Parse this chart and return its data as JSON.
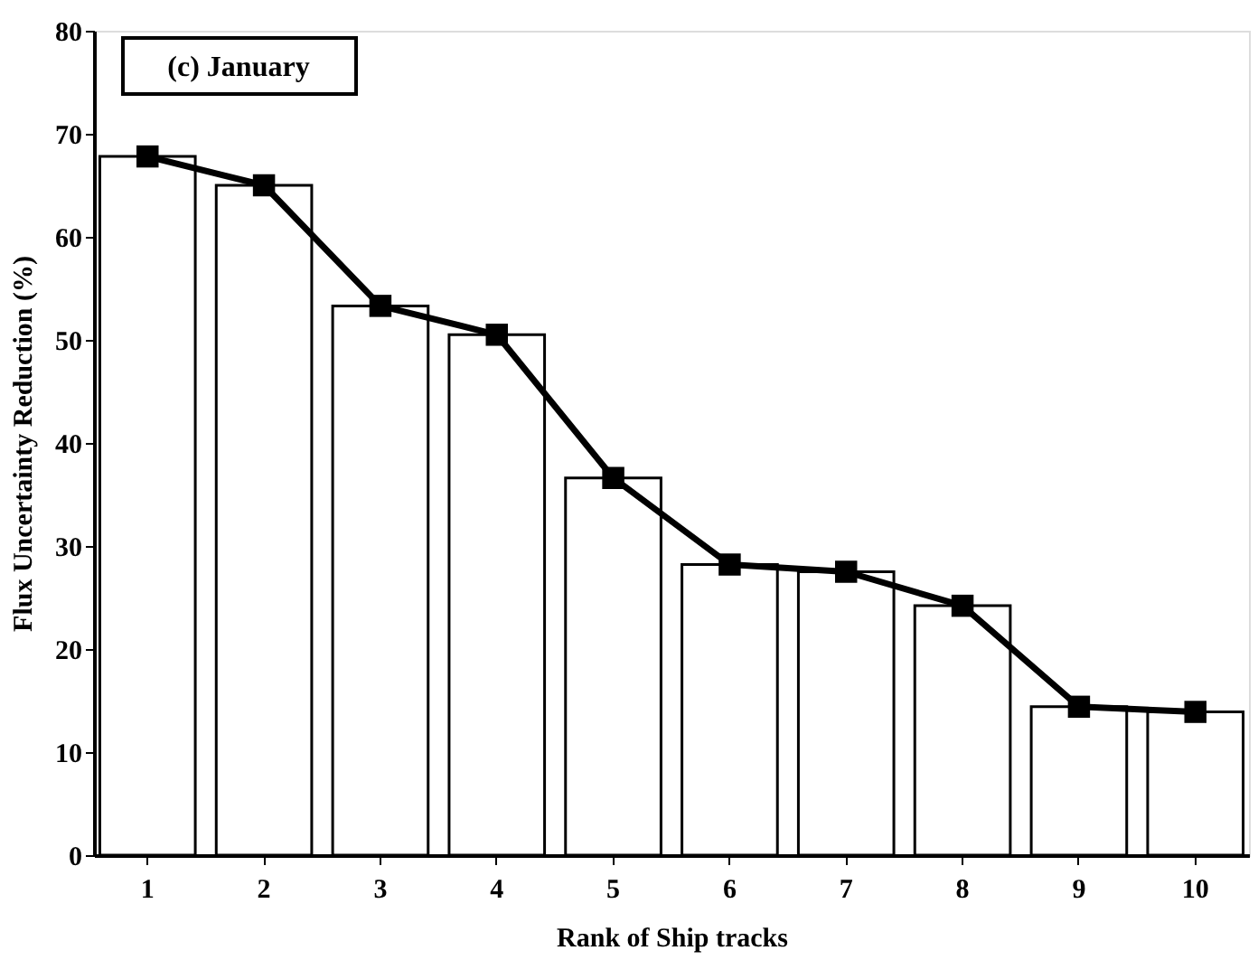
{
  "chart_data": {
    "type": "bar",
    "xlabel": "Rank of Ship tracks",
    "ylabel": "Flux Uncertainty Reduction (%)",
    "annotations": [
      "(c) January"
    ],
    "categories": [
      "1",
      "2",
      "3",
      "4",
      "5",
      "6",
      "7",
      "8",
      "9",
      "10"
    ],
    "series": [
      {
        "color": "#ffffff",
        "values": [
          67.8,
          65.0,
          53.3,
          50.5,
          36.6,
          28.2,
          27.5,
          24.2,
          14.4,
          13.9
        ]
      },
      {
        "type": "line",
        "color": "#000000",
        "values": [
          67.8,
          65.0,
          53.3,
          50.5,
          36.6,
          28.2,
          27.5,
          24.2,
          14.4,
          13.9
        ]
      }
    ],
    "marker": "square",
    "line_style": "solid",
    "ylim": [
      0,
      80
    ],
    "yticks": [
      0,
      10,
      20,
      30,
      40,
      50,
      60,
      70,
      80
    ],
    "grid": false,
    "legend": false
  }
}
